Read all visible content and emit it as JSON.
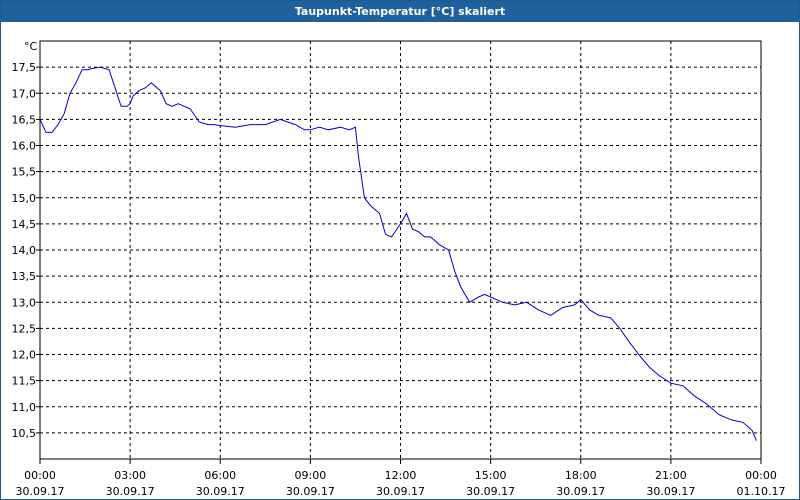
{
  "window": {
    "title": "Taupunkt-Temperatur [°C] skaliert"
  },
  "colors": {
    "titlebar": "#20609c",
    "line": "#0000cc",
    "grid": "#000000"
  },
  "chart_data": {
    "type": "line",
    "title": "Taupunkt-Temperatur [°C] skaliert",
    "ylabel": "°C",
    "xlabel": "",
    "ylim": [
      10.0,
      18.0
    ],
    "xlim_hours": [
      0,
      24
    ],
    "grid": true,
    "y_ticks": [
      "10,5",
      "11,0",
      "11,5",
      "12,0",
      "12,5",
      "13,0",
      "13,5",
      "14,0",
      "14,5",
      "15,0",
      "15,5",
      "16,0",
      "16,5",
      "17,0",
      "17,5"
    ],
    "x_ticks": [
      {
        "time": "00:00",
        "date": "30.09.17"
      },
      {
        "time": "03:00",
        "date": "30.09.17"
      },
      {
        "time": "06:00",
        "date": "30.09.17"
      },
      {
        "time": "09:00",
        "date": "30.09.17"
      },
      {
        "time": "12:00",
        "date": "30.09.17"
      },
      {
        "time": "15:00",
        "date": "30.09.17"
      },
      {
        "time": "18:00",
        "date": "30.09.17"
      },
      {
        "time": "21:00",
        "date": "30.09.17"
      },
      {
        "time": "00:00",
        "date": "01.10.17"
      }
    ],
    "series": [
      {
        "hours": [
          0.0,
          0.2,
          0.4,
          0.6,
          0.8,
          1.0,
          1.2,
          1.4,
          1.6,
          1.7,
          2.0,
          2.3,
          2.5,
          2.7,
          2.8,
          2.9,
          3.0,
          3.1,
          3.3,
          3.5,
          3.7,
          4.0,
          4.2,
          4.4,
          4.6,
          4.8,
          5.0,
          5.3,
          5.6,
          5.8,
          6.0,
          6.5,
          7.0,
          7.5,
          8.0,
          8.5,
          8.8,
          9.0,
          9.3,
          9.6,
          10.0,
          10.3,
          10.5,
          10.6,
          10.7,
          10.8,
          11.0,
          11.3,
          11.5,
          11.7,
          12.0,
          12.2,
          12.4,
          12.6,
          12.8,
          13.0,
          13.3,
          13.6,
          13.8,
          14.0,
          14.3,
          14.6,
          14.8,
          15.0,
          15.2,
          15.4,
          15.8,
          16.2,
          16.6,
          17.0,
          17.4,
          17.8,
          18.0,
          18.3,
          18.6,
          19.0,
          19.3,
          19.6,
          20.0,
          20.3,
          20.6,
          21.0,
          21.4,
          21.8,
          22.2,
          22.6,
          23.0,
          23.4,
          23.7,
          23.85
        ],
        "values": [
          16.5,
          16.25,
          16.25,
          16.4,
          16.6,
          17.0,
          17.2,
          17.45,
          17.45,
          17.47,
          17.5,
          17.45,
          17.1,
          16.75,
          16.75,
          16.75,
          16.8,
          16.95,
          17.05,
          17.1,
          17.2,
          17.05,
          16.8,
          16.75,
          16.8,
          16.75,
          16.7,
          16.45,
          16.4,
          16.4,
          16.38,
          16.35,
          16.4,
          16.4,
          16.5,
          16.4,
          16.3,
          16.3,
          16.35,
          16.3,
          16.35,
          16.3,
          16.35,
          15.8,
          15.4,
          15.0,
          14.85,
          14.7,
          14.3,
          14.25,
          14.5,
          14.7,
          14.4,
          14.35,
          14.25,
          14.25,
          14.1,
          14.0,
          13.6,
          13.3,
          13.0,
          13.1,
          13.15,
          13.1,
          13.05,
          13.0,
          12.95,
          13.0,
          12.85,
          12.75,
          12.9,
          12.95,
          13.05,
          12.85,
          12.75,
          12.7,
          12.5,
          12.25,
          11.95,
          11.75,
          11.6,
          11.45,
          11.4,
          11.2,
          11.05,
          10.85,
          10.75,
          10.7,
          10.55,
          10.35
        ]
      }
    ]
  }
}
